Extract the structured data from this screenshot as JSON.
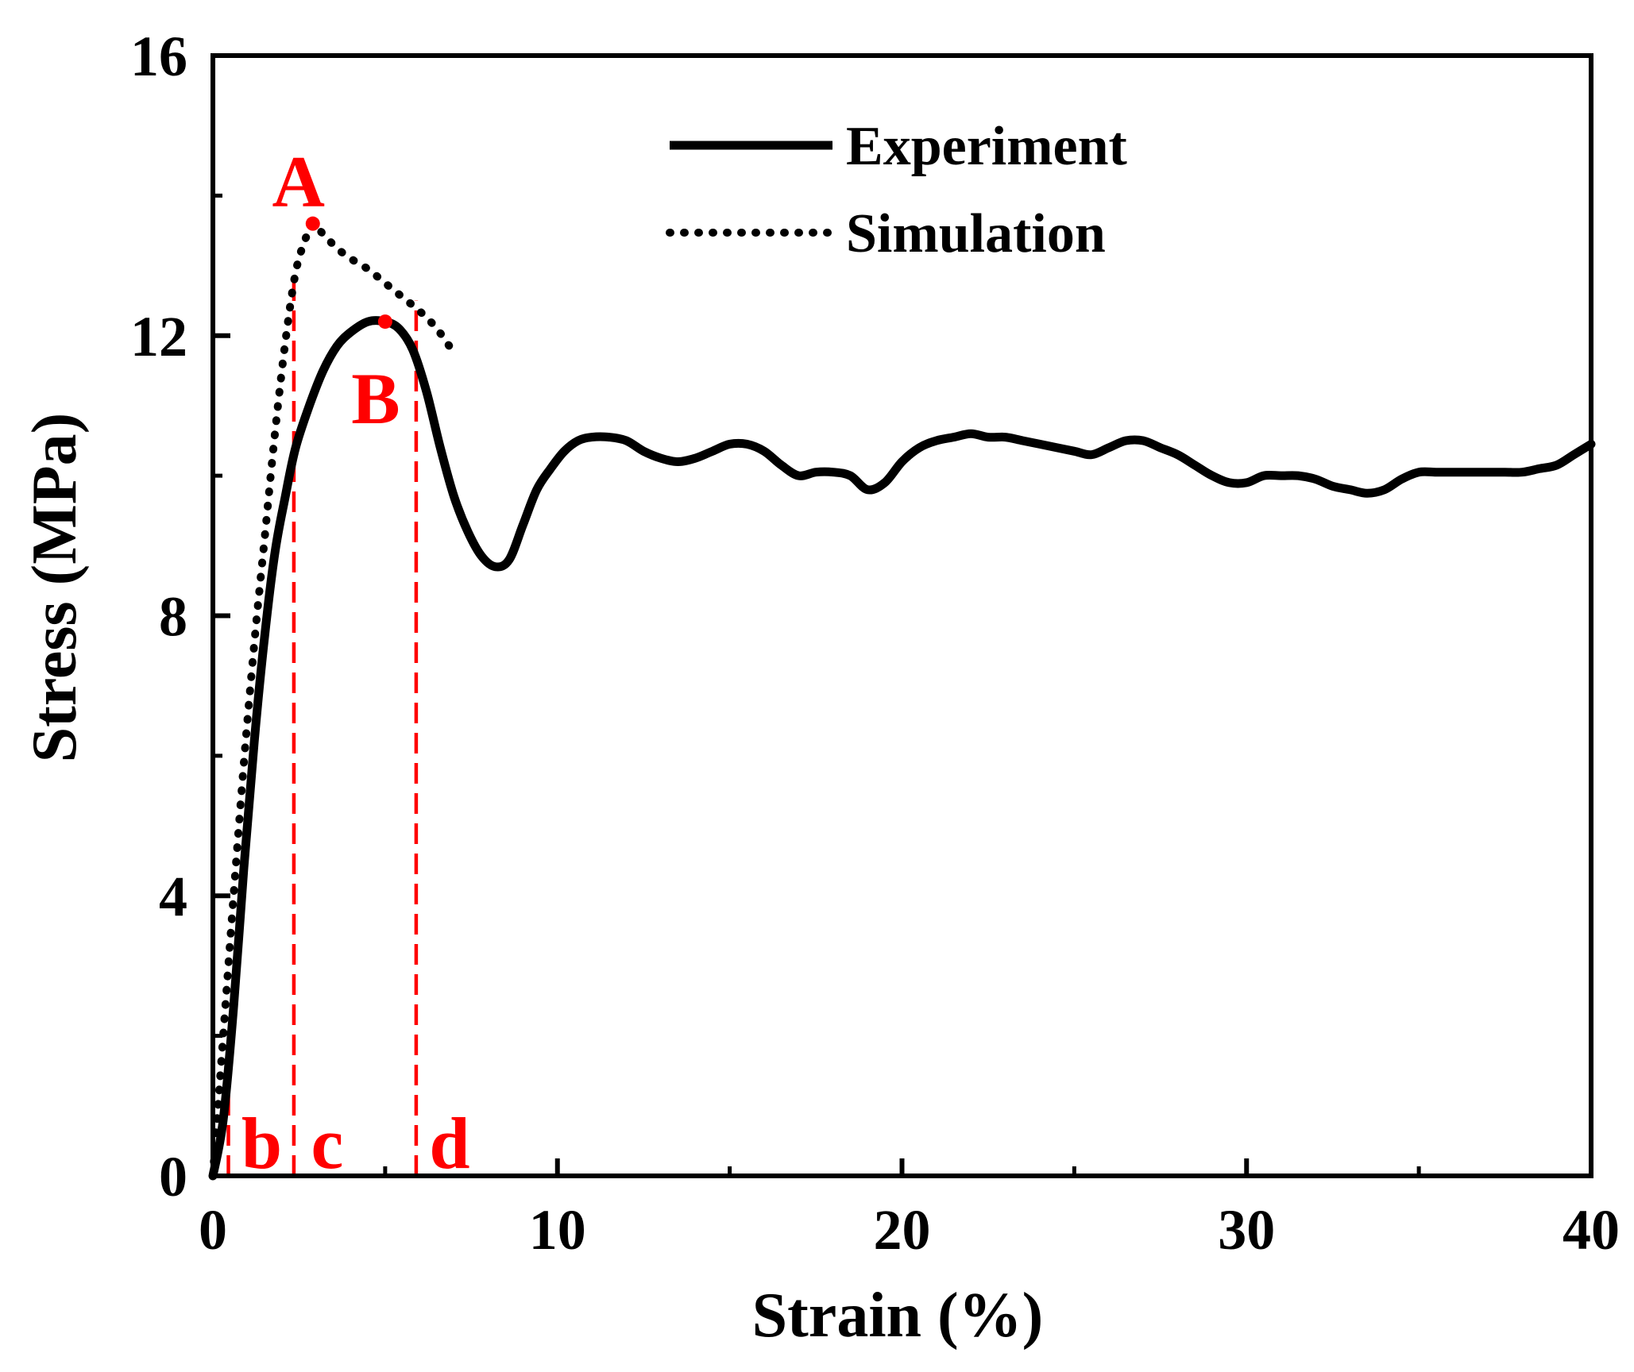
{
  "chart_data": {
    "type": "line",
    "title": "",
    "xlabel": "Strain (%)",
    "ylabel": "Stress (MPa)",
    "xlim": [
      0,
      40
    ],
    "ylim": [
      0,
      16
    ],
    "xticks": [
      0,
      10,
      20,
      30,
      40
    ],
    "xtick_labels": [
      "0",
      "10",
      "20",
      "30",
      "40"
    ],
    "yticks": [
      0,
      4,
      8,
      12,
      16
    ],
    "ytick_labels": [
      "0",
      "4",
      "8",
      "12",
      "16"
    ],
    "x_minor_ticks": [
      5,
      15,
      25,
      35
    ],
    "y_minor_ticks": [
      2,
      6,
      10,
      14
    ],
    "grid": false,
    "legend_position": "top-right",
    "series": [
      {
        "name": "Experiment",
        "style": "solid",
        "color": "#000000",
        "x": [
          0,
          0.3,
          0.6,
          0.9,
          1.2,
          1.5,
          1.8,
          2.1,
          2.4,
          2.8,
          3.2,
          3.6,
          4.0,
          4.5,
          5.0,
          5.4,
          5.8,
          6.2,
          6.6,
          7.0,
          7.4,
          7.8,
          8.2,
          8.6,
          9.0,
          9.4,
          9.8,
          10.2,
          10.6,
          11.0,
          11.5,
          12.0,
          12.5,
          13.0,
          13.5,
          14.0,
          14.5,
          15.0,
          15.5,
          16.0,
          16.5,
          17.0,
          17.5,
          18.0,
          18.5,
          19.0,
          19.5,
          20.0,
          20.5,
          21.0,
          21.5,
          22.0,
          22.5,
          23.0,
          23.5,
          24.0,
          24.5,
          25.0,
          25.5,
          26.0,
          26.5,
          27.0,
          27.5,
          28.0,
          28.5,
          29.0,
          29.5,
          30.0,
          30.5,
          31.0,
          31.5,
          32.0,
          32.5,
          33.0,
          33.5,
          34.0,
          34.5,
          35.0,
          35.5,
          36.0,
          36.5,
          37.0,
          37.5,
          38.0,
          38.5,
          39.0,
          39.5,
          40.0
        ],
        "y": [
          0,
          0.8,
          2.4,
          4.4,
          6.2,
          7.7,
          8.9,
          9.7,
          10.4,
          11.0,
          11.5,
          11.85,
          12.05,
          12.2,
          12.2,
          12.1,
          11.8,
          11.2,
          10.4,
          9.7,
          9.2,
          8.85,
          8.7,
          8.8,
          9.3,
          9.8,
          10.1,
          10.35,
          10.5,
          10.55,
          10.55,
          10.5,
          10.35,
          10.25,
          10.2,
          10.25,
          10.35,
          10.45,
          10.45,
          10.35,
          10.15,
          10.0,
          10.05,
          10.05,
          10.0,
          9.8,
          9.9,
          10.2,
          10.4,
          10.5,
          10.55,
          10.6,
          10.55,
          10.55,
          10.5,
          10.45,
          10.4,
          10.35,
          10.3,
          10.4,
          10.5,
          10.5,
          10.4,
          10.3,
          10.15,
          10.0,
          9.9,
          9.9,
          10.0,
          10.0,
          10.0,
          9.95,
          9.85,
          9.8,
          9.75,
          9.8,
          9.95,
          10.05,
          10.05,
          10.05,
          10.05,
          10.05,
          10.05,
          10.05,
          10.1,
          10.15,
          10.3,
          10.45
        ]
      },
      {
        "name": "Simulation",
        "style": "dotted",
        "color": "#000000",
        "x": [
          0,
          0.3,
          0.6,
          0.9,
          1.2,
          1.5,
          1.8,
          2.1,
          2.4,
          2.7,
          2.9,
          3.2,
          3.6,
          4.0,
          4.5,
          5.0,
          5.5,
          6.0,
          6.5,
          7.0
        ],
        "y": [
          0,
          2.0,
          4.0,
          5.9,
          7.6,
          9.1,
          10.6,
          11.9,
          12.9,
          13.4,
          13.6,
          13.45,
          13.25,
          13.1,
          12.95,
          12.75,
          12.55,
          12.35,
          12.1,
          11.75
        ]
      }
    ],
    "points": [
      {
        "label": "A",
        "x": 2.9,
        "y": 13.6,
        "color": "#ff0000"
      },
      {
        "label": "B",
        "x": 5.0,
        "y": 12.2,
        "color": "#ff0000"
      }
    ],
    "vlines": [
      {
        "label": "b",
        "x": 0.45,
        "y_top": 1.6,
        "color": "#ff0000"
      },
      {
        "label": "c",
        "x": 2.35,
        "y_top": 12.9,
        "color": "#ff0000"
      },
      {
        "label": "d",
        "x": 5.9,
        "y_top": 12.5,
        "color": "#ff0000"
      }
    ]
  }
}
